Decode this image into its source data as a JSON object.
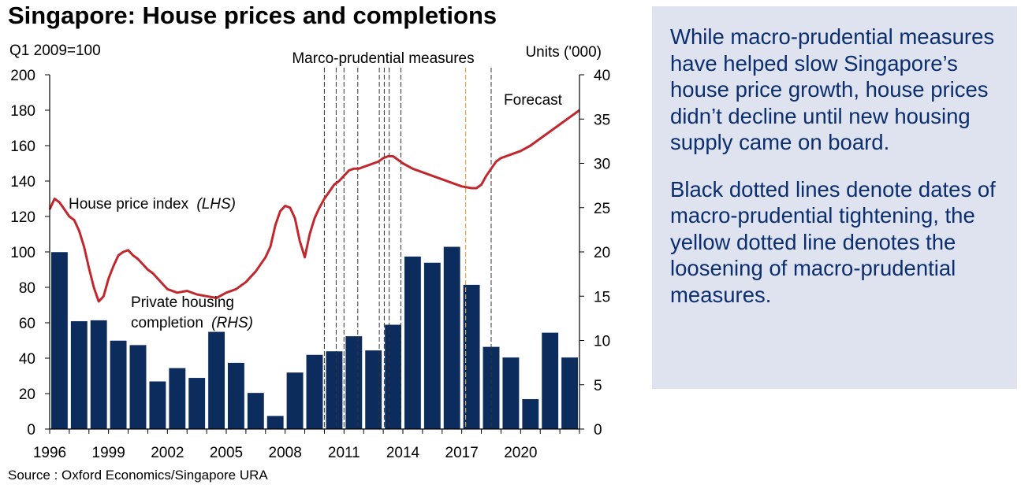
{
  "title": "Singapore: House prices and completions",
  "source": "Source : Oxford Economics/Singapore URA",
  "commentary": [
    "While macro-prudential measures have helped slow Singapore’s house price growth, house prices didn’t decline until new housing supply came on board.",
    "Black dotted lines denote dates of macro-prudential tightening, the yellow dotted line denotes the loosening of macro-prudential measures."
  ],
  "chart_data": {
    "type": "bar+line",
    "left_axis": {
      "label": "Q1 2009=100",
      "min": 0,
      "max": 200,
      "ticks": [
        0,
        20,
        40,
        60,
        80,
        100,
        120,
        140,
        160,
        180,
        200
      ]
    },
    "right_axis": {
      "label": "Units ('000)",
      "min": 0,
      "max": 40,
      "ticks": [
        0,
        5,
        10,
        15,
        20,
        25,
        30,
        35,
        40
      ]
    },
    "x_axis": {
      "min": 1996,
      "max": 2023,
      "ticks": [
        1996,
        1999,
        2002,
        2005,
        2008,
        2011,
        2014,
        2017,
        2020
      ]
    },
    "annotations": {
      "measures_label": "Marco-prudential measures",
      "forecast_label": "Forecast",
      "price_label": "House price index",
      "price_label_suffix": "(LHS)",
      "completion_label_line1": "Private housing",
      "completion_label_line2": "completion",
      "completion_label_suffix": "(RHS)"
    },
    "series": [
      {
        "name": "Private housing completion",
        "axis": "right",
        "color": "#0d2c5e",
        "years": [
          1996,
          1997,
          1998,
          1999,
          2000,
          2001,
          2002,
          2003,
          2004,
          2005,
          2006,
          2007,
          2008,
          2009,
          2010,
          2011,
          2012,
          2013,
          2014,
          2015,
          2016,
          2017,
          2018,
          2019,
          2020,
          2021,
          2022
        ],
        "values": [
          20,
          12.2,
          12.3,
          10,
          9.5,
          5.4,
          6.9,
          5.8,
          11,
          7.5,
          4.1,
          1.5,
          6.4,
          8.4,
          8.8,
          10.5,
          8.9,
          11.8,
          19.5,
          18.8,
          20.6,
          16.3,
          9.3,
          8.1,
          3.4,
          10.9,
          8.1
        ]
      },
      {
        "name": "House price index",
        "axis": "left",
        "color": "#c0282e",
        "x": [
          1996,
          1996.25,
          1996.5,
          1996.75,
          1997,
          1997.25,
          1997.5,
          1997.75,
          1998,
          1998.25,
          1998.5,
          1998.75,
          1999,
          1999.25,
          1999.5,
          1999.75,
          2000,
          2000.25,
          2000.5,
          2000.75,
          2001,
          2001.25,
          2001.5,
          2001.75,
          2002,
          2002.5,
          2003,
          2003.5,
          2004,
          2004.5,
          2005,
          2005.5,
          2006,
          2006.5,
          2007,
          2007.25,
          2007.5,
          2007.75,
          2008,
          2008.25,
          2008.5,
          2008.75,
          2009,
          2009.25,
          2009.5,
          2009.75,
          2010,
          2010.25,
          2010.5,
          2010.75,
          2011,
          2011.25,
          2011.5,
          2011.75,
          2012,
          2012.25,
          2012.5,
          2012.75,
          2013,
          2013.25,
          2013.5,
          2013.75,
          2014,
          2014.5,
          2015,
          2015.5,
          2016,
          2016.5,
          2017,
          2017.5,
          2017.75,
          2018,
          2018.25,
          2018.5,
          2018.75,
          2019,
          2019.5,
          2020,
          2020.5,
          2021,
          2021.5,
          2022,
          2022.5,
          2023
        ],
        "values": [
          124,
          130,
          128,
          124,
          120,
          118,
          112,
          103,
          91,
          80,
          72,
          75,
          85,
          92,
          98,
          100,
          101,
          98,
          96,
          93,
          90,
          88,
          85,
          82,
          79,
          77,
          78,
          76,
          75,
          74,
          77,
          79,
          83,
          89,
          97,
          103,
          115,
          123,
          126,
          125,
          119,
          106,
          97,
          110,
          119,
          125,
          130,
          134,
          138,
          140,
          143,
          146,
          147,
          147,
          148,
          149,
          150,
          151,
          153,
          154,
          154,
          152,
          150,
          147,
          145,
          143,
          141,
          139,
          137,
          136,
          136,
          138,
          143,
          147,
          151,
          153,
          155,
          157,
          160,
          164,
          168,
          172,
          176,
          180
        ]
      }
    ],
    "tightening_dates": [
      2010,
      2010.6,
      2011.0,
      2011.7,
      2012.8,
      2013.05,
      2013.3,
      2013.9,
      2018.5
    ],
    "loosening_dates": [
      2017.2
    ]
  }
}
